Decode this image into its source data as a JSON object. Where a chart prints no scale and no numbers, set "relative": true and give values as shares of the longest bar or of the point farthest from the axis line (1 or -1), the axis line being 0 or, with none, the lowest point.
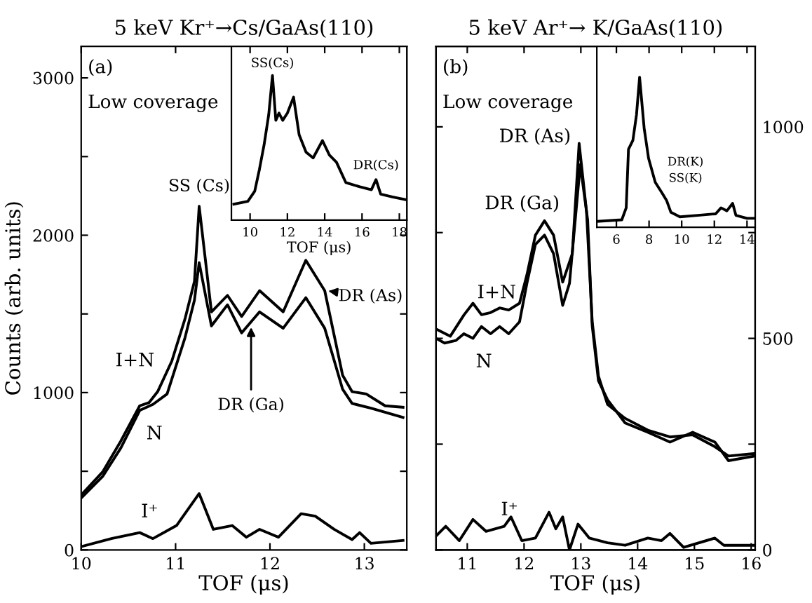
{
  "chart_data": [
    {
      "type": "line",
      "title": "5 keV Kr⁺→Cs/GaAs(110)",
      "xlabel": "TOF (μs)",
      "ylabel": "Counts (arb. units)",
      "xlim": [
        10,
        13.45
      ],
      "xticks": [
        10,
        11,
        12,
        13
      ],
      "ylim": [
        0,
        3200
      ],
      "yticks": [
        0,
        {
          "value": 500,
          "label": null
        },
        1000,
        {
          "value": 1500,
          "label": null
        },
        2000,
        {
          "value": 2500,
          "label": null
        },
        3000
      ],
      "grid": false,
      "legend": false,
      "marker": "none",
      "line_style": "solid",
      "series": [
        {
          "color": "#000000",
          "x": [
            10.0,
            10.23,
            10.42,
            10.62,
            10.72,
            10.81,
            10.96,
            11.1,
            11.2,
            11.25,
            11.38,
            11.55,
            11.7,
            11.89,
            12.14,
            12.38,
            12.58,
            12.77,
            12.87,
            13.02,
            13.22,
            13.41
          ],
          "values": [
            349,
            498,
            692,
            916,
            937,
            1006,
            1200,
            1469,
            1707,
            2184,
            1513,
            1618,
            1484,
            1648,
            1513,
            1841,
            1648,
            1110,
            1006,
            991,
            916,
            907
          ]
        },
        {
          "color": "#000000",
          "x": [
            10.0,
            10.23,
            10.42,
            10.62,
            10.76,
            10.91,
            11.1,
            11.2,
            11.25,
            11.38,
            11.55,
            11.7,
            11.89,
            12.14,
            12.38,
            12.58,
            12.77,
            12.87,
            13.07,
            13.41
          ],
          "values": [
            330,
            469,
            648,
            887,
            925,
            991,
            1349,
            1588,
            1826,
            1424,
            1558,
            1379,
            1513,
            1409,
            1603,
            1409,
            1021,
            931,
            901,
            842
          ]
        },
        {
          "color": "#000000",
          "x": [
            10.0,
            10.32,
            10.62,
            10.76,
            11.01,
            11.25,
            11.4,
            11.6,
            11.75,
            11.89,
            12.09,
            12.33,
            12.48,
            12.68,
            12.87,
            12.95,
            13.07,
            13.41
          ],
          "values": [
            21,
            72,
            110,
            72,
            155,
            358,
            131,
            155,
            81,
            131,
            81,
            230,
            215,
            131,
            66,
            110,
            42,
            60
          ]
        }
      ],
      "annotations": [
        "(a)",
        "Low coverage",
        {
          "text": "SS (Cs)",
          "x": 11.25,
          "y": 2184
        },
        {
          "text": "DR (As)",
          "x": 12.58,
          "y": 1648
        },
        {
          "text": "DR (Ga)",
          "x": 11.8,
          "y": 1440
        },
        "I+N",
        "N",
        "I⁺"
      ]
    },
    {
      "type": "line",
      "relative": true,
      "xlabel": "TOF (μs)",
      "xlim": [
        9.0,
        18.4
      ],
      "xticks": [
        10,
        12,
        14,
        16,
        18
      ],
      "grid": false,
      "legend": false,
      "marker": "none",
      "line_style": "solid",
      "series": [
        {
          "color": "#000000",
          "x": [
            9.13,
            9.88,
            10.25,
            10.5,
            10.75,
            11.0,
            11.2,
            11.38,
            11.55,
            11.75,
            12.0,
            12.33,
            12.63,
            13.0,
            13.38,
            13.88,
            14.25,
            14.63,
            15.13,
            15.88,
            16.5,
            16.75,
            17.0,
            17.63,
            18.38
          ],
          "values": [
            0.11,
            0.13,
            0.2,
            0.35,
            0.52,
            0.73,
            1.0,
            0.69,
            0.74,
            0.69,
            0.74,
            0.85,
            0.59,
            0.47,
            0.43,
            0.55,
            0.45,
            0.4,
            0.26,
            0.23,
            0.21,
            0.28,
            0.18,
            0.16,
            0.14
          ]
        }
      ],
      "annotations": [
        {
          "text": "SS(Cs)",
          "x": 11.2,
          "y": 1.0
        },
        {
          "text": "DR(Cs)",
          "x": 16.75,
          "y": 0.28
        }
      ]
    },
    {
      "type": "line",
      "title": "5 keV Ar⁺→ K/GaAs(110)",
      "xlabel": "TOF (μs)",
      "xlim": [
        10.45,
        16.07
      ],
      "xticks": [
        11,
        12,
        13,
        14,
        15,
        16
      ],
      "y2lim": [
        0,
        1190
      ],
      "y2ticks": [
        0,
        {
          "value": 250,
          "label": null
        },
        500,
        {
          "value": 750,
          "label": null
        },
        1000
      ],
      "grid": false,
      "legend": false,
      "marker": "none",
      "line_style": "solid",
      "series": [
        {
          "color": "#000000",
          "axis": "y2",
          "x": [
            10.45,
            10.7,
            10.94,
            11.1,
            11.25,
            11.41,
            11.57,
            11.73,
            11.92,
            12.05,
            12.2,
            12.36,
            12.52,
            12.68,
            12.85,
            12.97,
            13.1,
            13.2,
            13.31,
            13.47,
            13.78,
            14.18,
            14.57,
            14.97,
            15.36,
            15.6,
            16.07
          ],
          "values": [
            522,
            505,
            555,
            583,
            556,
            561,
            572,
            567,
            583,
            650,
            744,
            778,
            744,
            633,
            700,
            961,
            800,
            540,
            411,
            344,
            311,
            283,
            267,
            272,
            244,
            222,
            228
          ]
        },
        {
          "color": "#000000",
          "axis": "y2",
          "x": [
            10.45,
            10.6,
            10.8,
            10.94,
            11.1,
            11.25,
            11.41,
            11.57,
            11.73,
            11.92,
            12.05,
            12.2,
            12.36,
            12.52,
            12.68,
            12.8,
            12.99,
            13.12,
            13.2,
            13.31,
            13.47,
            13.78,
            14.18,
            14.57,
            14.97,
            15.36,
            15.6,
            16.07
          ],
          "values": [
            500,
            489,
            495,
            511,
            500,
            528,
            511,
            528,
            511,
            539,
            630,
            722,
            744,
            700,
            578,
            630,
            911,
            780,
            530,
            400,
            355,
            300,
            278,
            255,
            278,
            255,
            211,
            222
          ]
        },
        {
          "color": "#000000",
          "axis": "y2",
          "x": [
            10.45,
            10.62,
            10.86,
            11.1,
            11.33,
            11.65,
            11.77,
            11.96,
            12.2,
            12.44,
            12.56,
            12.68,
            12.8,
            12.95,
            13.15,
            13.47,
            13.78,
            14.18,
            14.42,
            14.57,
            14.81,
            15.36,
            15.52,
            15.84,
            16.07
          ],
          "values": [
            33,
            56,
            22,
            72,
            44,
            56,
            78,
            22,
            28,
            89,
            50,
            78,
            0,
            61,
            28,
            17,
            11,
            28,
            22,
            39,
            6,
            28,
            11,
            11,
            11
          ]
        }
      ],
      "annotations": [
        "(b)",
        "Low coverage",
        "DR (As)",
        "DR (Ga)",
        "I+N",
        "N",
        "I⁺"
      ]
    },
    {
      "type": "line",
      "relative": true,
      "xlim": [
        4.8,
        14.5
      ],
      "xticks": [
        6,
        8,
        10,
        12,
        14
      ],
      "grid": false,
      "legend": false,
      "marker": "none",
      "line_style": "solid",
      "series": [
        {
          "color": "#000000",
          "x": [
            4.82,
            6.33,
            6.6,
            6.74,
            7.01,
            7.23,
            7.42,
            7.7,
            7.97,
            8.38,
            8.79,
            9.07,
            9.34,
            9.89,
            10.99,
            12.08,
            12.41,
            12.77,
            13.12,
            13.32,
            14.0,
            14.45
          ],
          "values": [
            0.04,
            0.05,
            0.13,
            0.52,
            0.58,
            0.75,
            1.0,
            0.66,
            0.46,
            0.3,
            0.23,
            0.18,
            0.1,
            0.07,
            0.08,
            0.09,
            0.13,
            0.11,
            0.16,
            0.08,
            0.06,
            0.06
          ]
        }
      ],
      "annotations": [
        "DR(K)",
        "SS(K)"
      ]
    }
  ]
}
